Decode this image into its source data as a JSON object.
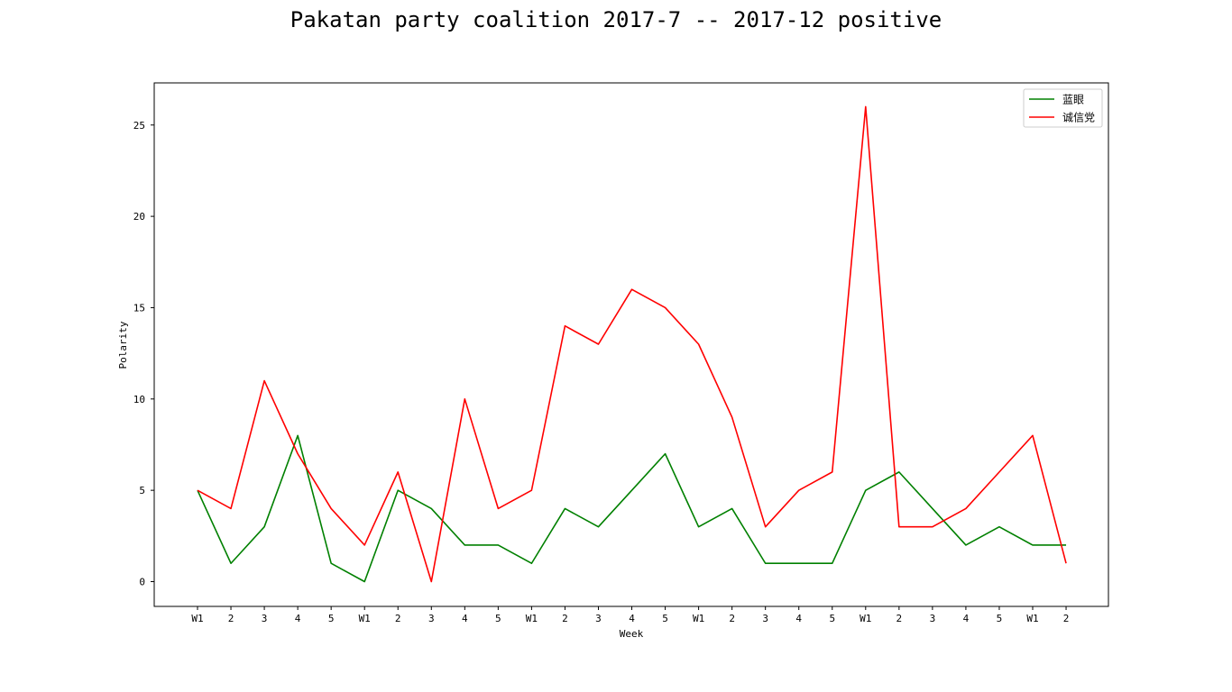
{
  "chart_data": {
    "type": "line",
    "title": "Pakatan party coalition 2017-7 -- 2017-12 positive",
    "xlabel": "Week",
    "ylabel": "Polarity",
    "ylim": [
      -1.3,
      27.3
    ],
    "yticks": [
      0,
      5,
      10,
      15,
      20,
      25
    ],
    "categories": [
      "W1",
      "2",
      "3",
      "4",
      "5",
      "W1",
      "2",
      "3",
      "4",
      "5",
      "W1",
      "2",
      "3",
      "4",
      "5",
      "W1",
      "2",
      "3",
      "4",
      "5",
      "W1",
      "2",
      "3",
      "4",
      "5",
      "W1",
      "2"
    ],
    "legend_position": "top-right",
    "grid": false,
    "series": [
      {
        "name": "蓝眼",
        "color": "#008000",
        "values": [
          5,
          1,
          3,
          8,
          1,
          0,
          5,
          4,
          2,
          2,
          1,
          4,
          3,
          5,
          7,
          3,
          4,
          1,
          1,
          1,
          5,
          6,
          4,
          2,
          3,
          2,
          2
        ]
      },
      {
        "name": "诚信党",
        "color": "#ff0000",
        "values": [
          5,
          4,
          11,
          7,
          4,
          2,
          6,
          0,
          10,
          4,
          5,
          14,
          13,
          16,
          15,
          13,
          9,
          3,
          5,
          6,
          26,
          3,
          3,
          4,
          6,
          8,
          1
        ]
      }
    ]
  }
}
